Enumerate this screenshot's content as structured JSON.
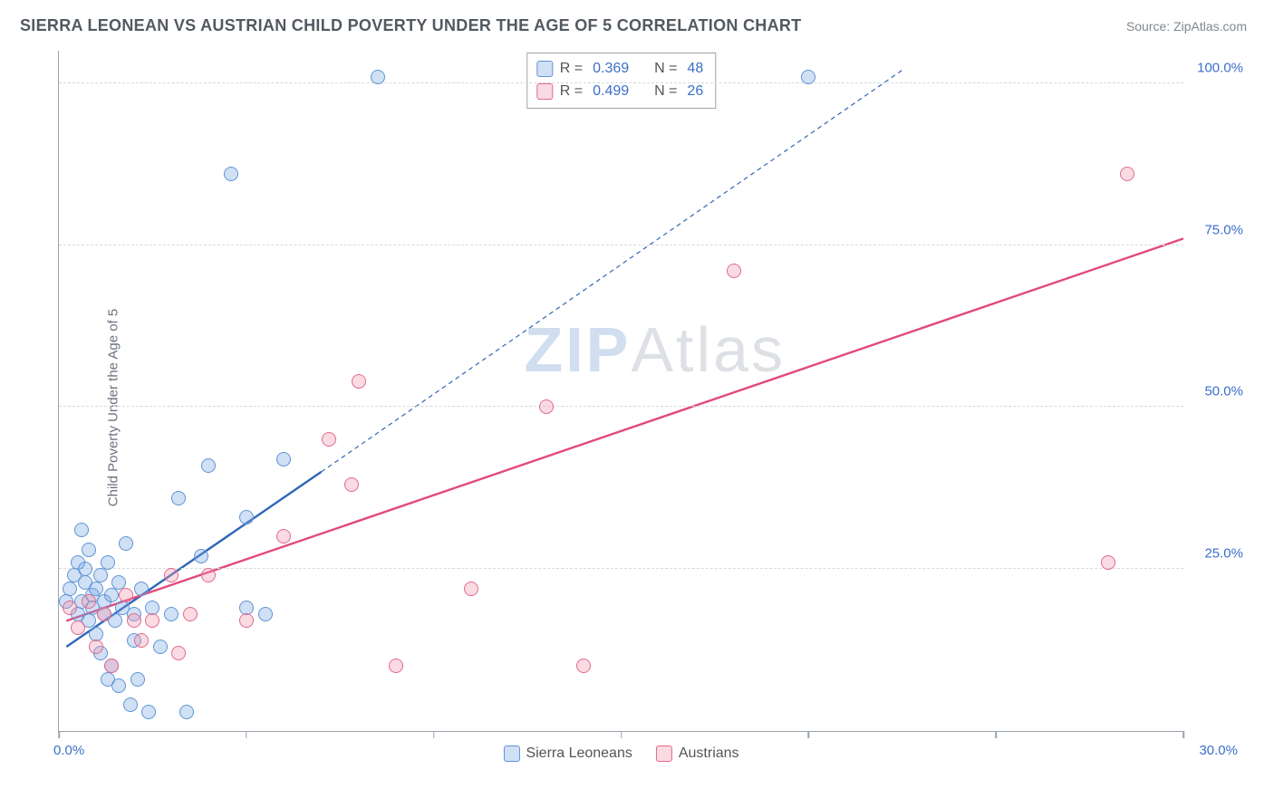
{
  "header": {
    "title": "SIERRA LEONEAN VS AUSTRIAN CHILD POVERTY UNDER THE AGE OF 5 CORRELATION CHART",
    "source": "Source: ZipAtlas.com"
  },
  "ylabel": "Child Poverty Under the Age of 5",
  "watermark_z": "ZIP",
  "watermark_rest": "Atlas",
  "legend_bottom": {
    "series1": "Sierra Leoneans",
    "series2": "Austrians"
  },
  "legend_stats": {
    "r_label": "R =",
    "n_label": "N =",
    "s1_r": "0.369",
    "s1_n": "48",
    "s2_r": "0.499",
    "s2_n": "26"
  },
  "chart": {
    "type": "scatter",
    "xlim": [
      0,
      30
    ],
    "ylim": [
      0,
      105
    ],
    "x_ticks": [
      0,
      5,
      10,
      15,
      20,
      25,
      30
    ],
    "x_tick_labels": {
      "0": "0.0%",
      "30": "30.0%"
    },
    "y_ticks": [
      25,
      50,
      75,
      100
    ],
    "y_tick_labels": {
      "25": "25.0%",
      "50": "50.0%",
      "75": "75.0%",
      "100": "100.0%"
    },
    "grid_color": "#d6dade",
    "axis_color": "#9aa3ad",
    "background_color": "#ffffff",
    "series": [
      {
        "name": "Sierra Leoneans",
        "fill": "rgba(120,165,225,0.35)",
        "stroke": "#5f94d4",
        "line_color": "#2f66b8",
        "line_solid": [
          [
            0.2,
            13
          ],
          [
            7,
            40
          ]
        ],
        "line_dash": [
          [
            7,
            40
          ],
          [
            22.5,
            102
          ]
        ],
        "points": [
          [
            0.2,
            20
          ],
          [
            0.3,
            22
          ],
          [
            0.4,
            24
          ],
          [
            0.5,
            18
          ],
          [
            0.5,
            26
          ],
          [
            0.6,
            31
          ],
          [
            0.6,
            20
          ],
          [
            0.7,
            23
          ],
          [
            0.7,
            25
          ],
          [
            0.8,
            17
          ],
          [
            0.8,
            28
          ],
          [
            0.9,
            21
          ],
          [
            0.9,
            19
          ],
          [
            1.0,
            15
          ],
          [
            1.0,
            22
          ],
          [
            1.1,
            12
          ],
          [
            1.1,
            24
          ],
          [
            1.2,
            18
          ],
          [
            1.2,
            20
          ],
          [
            1.3,
            8
          ],
          [
            1.3,
            26
          ],
          [
            1.4,
            10
          ],
          [
            1.4,
            21
          ],
          [
            1.5,
            17
          ],
          [
            1.6,
            23
          ],
          [
            1.6,
            7
          ],
          [
            1.7,
            19
          ],
          [
            1.8,
            29
          ],
          [
            1.9,
            4
          ],
          [
            2.0,
            14
          ],
          [
            2.0,
            18
          ],
          [
            2.1,
            8
          ],
          [
            2.2,
            22
          ],
          [
            2.4,
            3
          ],
          [
            2.5,
            19
          ],
          [
            2.7,
            13
          ],
          [
            3.0,
            18
          ],
          [
            3.2,
            36
          ],
          [
            3.4,
            3
          ],
          [
            3.8,
            27
          ],
          [
            4.0,
            41
          ],
          [
            4.6,
            86
          ],
          [
            5.0,
            19
          ],
          [
            5.0,
            33
          ],
          [
            5.5,
            18
          ],
          [
            6.0,
            42
          ],
          [
            8.5,
            101
          ],
          [
            20.0,
            101
          ]
        ]
      },
      {
        "name": "Austrians",
        "fill": "rgba(240,150,175,0.35)",
        "stroke": "#e06a8d",
        "line_color": "#e24a78",
        "line_solid": [
          [
            0.2,
            17
          ],
          [
            30,
            76
          ]
        ],
        "line_dash": null,
        "points": [
          [
            0.3,
            19
          ],
          [
            0.5,
            16
          ],
          [
            0.8,
            20
          ],
          [
            1.0,
            13
          ],
          [
            1.2,
            18
          ],
          [
            1.4,
            10
          ],
          [
            1.8,
            21
          ],
          [
            2.0,
            17
          ],
          [
            2.2,
            14
          ],
          [
            2.5,
            17
          ],
          [
            3.0,
            24
          ],
          [
            3.2,
            12
          ],
          [
            3.5,
            18
          ],
          [
            4.0,
            24
          ],
          [
            5.0,
            17
          ],
          [
            6.0,
            30
          ],
          [
            7.2,
            45
          ],
          [
            7.8,
            38
          ],
          [
            8.0,
            54
          ],
          [
            9.0,
            10
          ],
          [
            11.0,
            22
          ],
          [
            13.0,
            50
          ],
          [
            14.0,
            10
          ],
          [
            18.0,
            71
          ],
          [
            28.0,
            26
          ],
          [
            28.5,
            86
          ]
        ]
      }
    ]
  },
  "colors": {
    "title_text": "#525960",
    "source_text": "#808890",
    "tick_text": "#3b6fc9"
  }
}
